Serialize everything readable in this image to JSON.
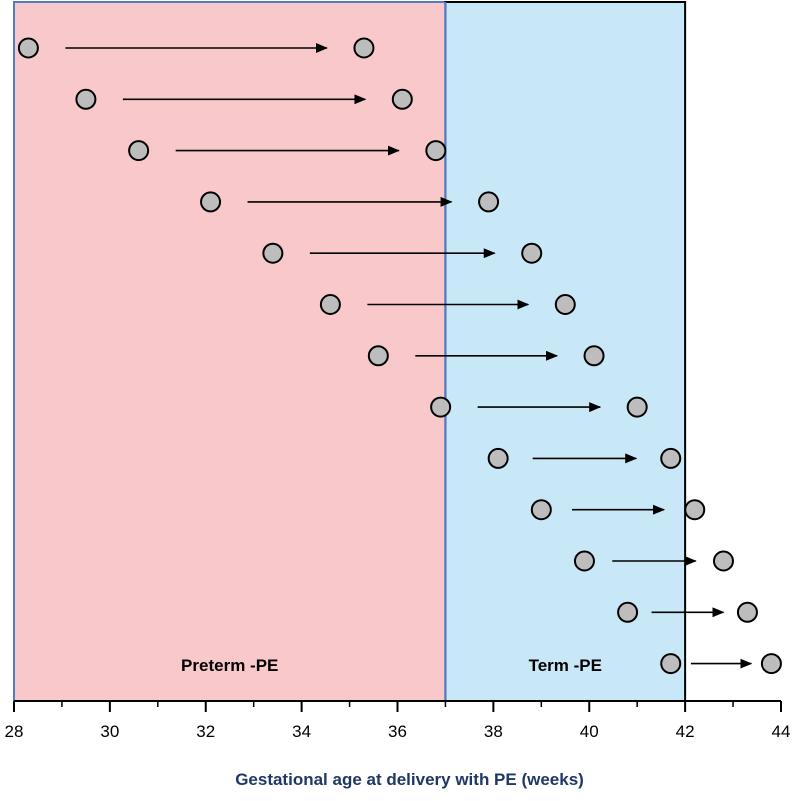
{
  "chart_data": {
    "type": "scatter",
    "title": "",
    "xlabel": "Gestational age at delivery with PE (weeks)",
    "ylabel": "",
    "xlim": [
      28,
      44
    ],
    "xticks": [
      28,
      30,
      32,
      34,
      36,
      38,
      40,
      42,
      44
    ],
    "regions": [
      {
        "label": "Preterm -PE",
        "x_start": 28,
        "x_end": 37,
        "color": "#f9c8cb",
        "border": "#4f7cc9"
      },
      {
        "label": "Term -PE",
        "x_start": 37,
        "x_end": 42,
        "color": "#c8e8f8",
        "border": "#000000"
      }
    ],
    "marker_color": "#bdbdbd",
    "pairs": [
      {
        "from": 28.3,
        "to": 35.3
      },
      {
        "from": 29.5,
        "to": 36.1
      },
      {
        "from": 30.6,
        "to": 36.8
      },
      {
        "from": 32.1,
        "to": 37.9
      },
      {
        "from": 33.4,
        "to": 38.8
      },
      {
        "from": 34.6,
        "to": 39.5
      },
      {
        "from": 35.6,
        "to": 40.1
      },
      {
        "from": 36.9,
        "to": 41.0
      },
      {
        "from": 38.1,
        "to": 41.7
      },
      {
        "from": 39.0,
        "to": 42.2
      },
      {
        "from": 39.9,
        "to": 42.8
      },
      {
        "from": 40.8,
        "to": 43.3
      },
      {
        "from": 41.7,
        "to": 43.8
      }
    ]
  }
}
